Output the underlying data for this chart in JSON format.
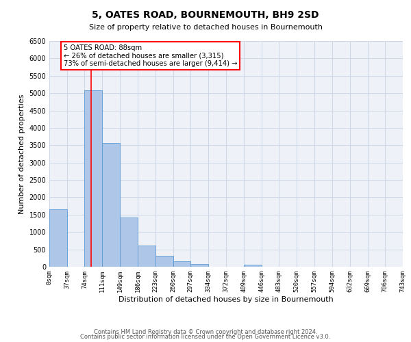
{
  "title": "5, OATES ROAD, BOURNEMOUTH, BH9 2SD",
  "subtitle": "Size of property relative to detached houses in Bournemouth",
  "xlabel": "Distribution of detached houses by size in Bournemouth",
  "ylabel": "Number of detached properties",
  "bin_edges": [
    0,
    37,
    74,
    111,
    149,
    186,
    223,
    260,
    297,
    334,
    372,
    409,
    446,
    483,
    520,
    557,
    594,
    632,
    669,
    706,
    743
  ],
  "bar_heights": [
    1650,
    0,
    5075,
    3575,
    1425,
    610,
    310,
    155,
    75,
    0,
    0,
    50,
    0,
    0,
    0,
    0,
    0,
    0,
    0,
    0
  ],
  "bar_color": "#aec6e8",
  "bar_edge_color": "#5b9bd5",
  "grid_color": "#d0d8e8",
  "property_line_x": 88,
  "property_line_color": "red",
  "ylim": [
    0,
    6500
  ],
  "yticks": [
    0,
    500,
    1000,
    1500,
    2000,
    2500,
    3000,
    3500,
    4000,
    4500,
    5000,
    5500,
    6000,
    6500
  ],
  "annotation_title": "5 OATES ROAD: 88sqm",
  "annotation_line1": "← 26% of detached houses are smaller (3,315)",
  "annotation_line2": "73% of semi-detached houses are larger (9,414) →",
  "annotation_box_color": "white",
  "annotation_box_edge": "red",
  "footer1": "Contains HM Land Registry data © Crown copyright and database right 2024.",
  "footer2": "Contains public sector information licensed under the Open Government Licence v3.0.",
  "tick_labels": [
    "0sqm",
    "37sqm",
    "74sqm",
    "111sqm",
    "149sqm",
    "186sqm",
    "223sqm",
    "260sqm",
    "297sqm",
    "334sqm",
    "372sqm",
    "409sqm",
    "446sqm",
    "483sqm",
    "520sqm",
    "557sqm",
    "594sqm",
    "632sqm",
    "669sqm",
    "706sqm",
    "743sqm"
  ],
  "bg_color": "#eef2f8"
}
